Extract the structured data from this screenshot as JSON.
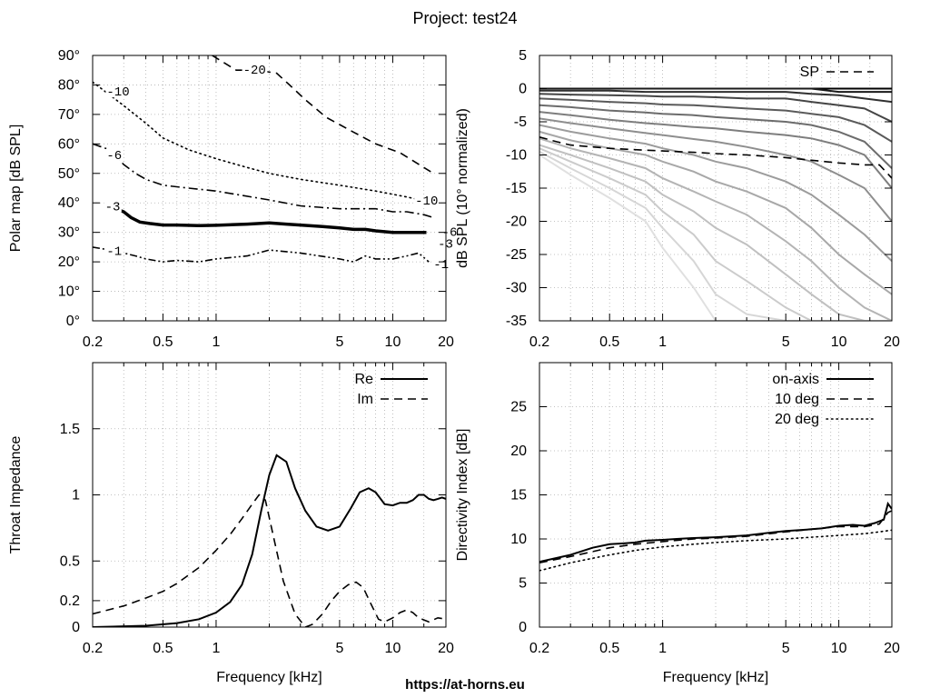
{
  "page": {
    "title": "Project: test24",
    "footer": "https://at-horns.eu"
  },
  "chart_data": [
    {
      "id": "polar",
      "type": "line",
      "title": "",
      "xlabel": "",
      "ylabel": "Polar map [dB SPL]",
      "xscale": "log",
      "xlim": [
        0.2,
        20
      ],
      "ylim": [
        0,
        90
      ],
      "x_ticks": [
        0.2,
        0.5,
        1,
        5,
        10,
        20
      ],
      "x_tick_labels": [
        "0.2",
        "0.5",
        "1",
        "5",
        "10",
        "20"
      ],
      "y_ticks": [
        0,
        10,
        20,
        30,
        40,
        50,
        60,
        70,
        80,
        90
      ],
      "y_tick_labels": [
        "0°",
        "10°",
        "20°",
        "30°",
        "40°",
        "50°",
        "60°",
        "70°",
        "80°",
        "90°"
      ],
      "grid": true,
      "series": [
        {
          "name": "-20",
          "style": "dash",
          "x": [
            0.95,
            1.3,
            1.7,
            2.2,
            2.6,
            3.2,
            4.2,
            6,
            8,
            11,
            15,
            17
          ],
          "y": [
            90,
            85,
            85,
            84,
            80,
            75,
            69,
            64,
            60,
            57,
            52,
            50
          ]
        },
        {
          "name": "-10",
          "style": "dot",
          "x": [
            0.2,
            0.3,
            0.4,
            0.5,
            0.7,
            1,
            1.5,
            2,
            3,
            5,
            8,
            12,
            17
          ],
          "y": [
            81,
            73,
            67,
            62,
            58,
            55,
            52,
            50,
            48,
            46,
            44,
            42,
            40
          ]
        },
        {
          "name": "-6",
          "style": "dashdot",
          "x": [
            0.2,
            0.25,
            0.3,
            0.35,
            0.4,
            0.5,
            0.7,
            1,
            2,
            3,
            5,
            8,
            10,
            12,
            15,
            17
          ],
          "y": [
            60,
            58,
            53,
            50,
            48,
            46,
            45,
            44,
            41,
            39,
            38,
            38,
            37,
            37,
            36,
            35
          ]
        },
        {
          "name": "-3",
          "style": "thick",
          "x": [
            0.27,
            0.3,
            0.33,
            0.37,
            0.42,
            0.5,
            0.6,
            0.8,
            1,
            1.5,
            2,
            2.5,
            3,
            4,
            5,
            6,
            7,
            8,
            10,
            12,
            14,
            15.5
          ],
          "y": [
            38,
            37,
            35,
            33.5,
            33,
            32.5,
            32.5,
            32.3,
            32.4,
            32.8,
            33.2,
            32.8,
            32.5,
            32,
            31.5,
            31,
            31,
            30.5,
            30,
            30,
            30,
            30
          ]
        },
        {
          "name": "-1",
          "style": "dashdotdot",
          "x": [
            0.2,
            0.25,
            0.3,
            0.35,
            0.4,
            0.5,
            0.6,
            0.8,
            1,
            1.5,
            2,
            3,
            5,
            6,
            7,
            8,
            10,
            12,
            14,
            16
          ],
          "y": [
            25,
            24,
            23,
            22,
            21,
            20,
            20.5,
            20,
            21,
            22,
            24,
            23,
            21,
            20,
            22,
            21,
            21,
            22,
            23,
            20
          ]
        }
      ],
      "contour_labels": [
        {
          "text": "-20",
          "x": 1.42,
          "y": 84.5
        },
        {
          "text": "-10",
          "x": 0.24,
          "y": 77
        },
        {
          "text": "-6",
          "x": 0.24,
          "y": 55.5
        },
        {
          "text": "-3",
          "x": 0.235,
          "y": 38
        },
        {
          "text": "-1",
          "x": 0.24,
          "y": 23
        },
        {
          "text": "-10",
          "x": 13.4,
          "y": 40
        },
        {
          "text": "-6",
          "x": 19,
          "y": 29.5
        },
        {
          "text": "-3",
          "x": 18,
          "y": 25.5
        },
        {
          "text": "-1",
          "x": 17,
          "y": 18.5
        }
      ]
    },
    {
      "id": "spl",
      "type": "line",
      "title": "",
      "xlabel": "",
      "ylabel": "dB SPL (10° normalized)",
      "xscale": "log",
      "xlim": [
        0.2,
        20
      ],
      "ylim": [
        -35,
        5
      ],
      "x_ticks": [
        0.2,
        0.5,
        1,
        5,
        10,
        20
      ],
      "x_tick_labels": [
        "0.2",
        "0.5",
        "1",
        "5",
        "10",
        "20"
      ],
      "y_ticks": [
        -35,
        -30,
        -25,
        -20,
        -15,
        -10,
        -5,
        0,
        5
      ],
      "y_tick_labels": [
        "-35",
        "-30",
        "-25",
        "-20",
        "-15",
        "-10",
        "-5",
        "0",
        "5"
      ],
      "grid": true,
      "legend": {
        "position": "top-right",
        "entries": [
          "SP"
        ]
      },
      "series_x": [
        0.2,
        0.3,
        0.5,
        0.8,
        1,
        1.5,
        2,
        3,
        5,
        7,
        10,
        14,
        20
      ],
      "angle_series": [
        {
          "gray": "#000000",
          "y": [
            0,
            0,
            0,
            0,
            0,
            0,
            0,
            0,
            0,
            0,
            0,
            0,
            0
          ]
        },
        {
          "gray": "#1a1a1a",
          "y": [
            0,
            0,
            0,
            0,
            0,
            0,
            0,
            0,
            0,
            0,
            -0.5,
            -0.5,
            -0.5
          ]
        },
        {
          "gray": "#303030",
          "y": [
            -0.3,
            -0.3,
            -0.3,
            -0.5,
            -0.5,
            -0.5,
            -0.5,
            -0.5,
            -0.5,
            -0.8,
            -1,
            -1.5,
            -2
          ]
        },
        {
          "gray": "#454545",
          "y": [
            -0.8,
            -0.9,
            -1,
            -1.1,
            -1.2,
            -1.2,
            -1.3,
            -1.5,
            -1.5,
            -2,
            -2.5,
            -3,
            -5
          ]
        },
        {
          "gray": "#5a5a5a",
          "y": [
            -1.5,
            -1.7,
            -2,
            -2.2,
            -2.4,
            -2.5,
            -2.7,
            -3,
            -3.3,
            -3.8,
            -4.3,
            -5.5,
            -8
          ]
        },
        {
          "gray": "#6c6c6c",
          "y": [
            -2.5,
            -2.8,
            -3.3,
            -3.6,
            -3.8,
            -4,
            -4.3,
            -4.6,
            -5,
            -5.5,
            -6.5,
            -8,
            -12
          ]
        },
        {
          "gray": "#7e7e7e",
          "y": [
            -3.5,
            -4,
            -4.7,
            -5.2,
            -5.4,
            -5.8,
            -6,
            -6.5,
            -7,
            -7.5,
            -8.5,
            -10,
            -15
          ]
        },
        {
          "gray": "#8e8e8e",
          "y": [
            -4.5,
            -5.2,
            -6,
            -6.7,
            -7,
            -7.6,
            -8,
            -8.8,
            -10,
            -11,
            -13,
            -15,
            -20
          ]
        },
        {
          "gray": "#9c9c9c",
          "y": [
            -5.5,
            -6.5,
            -7.5,
            -8.3,
            -9,
            -10,
            -11,
            -12,
            -14,
            -16,
            -19,
            -22,
            -26
          ]
        },
        {
          "gray": "#a8a8a8",
          "y": [
            -6.5,
            -7.8,
            -9,
            -10,
            -11,
            -12.5,
            -14,
            -15.5,
            -18,
            -21,
            -25,
            -28,
            -31
          ]
        },
        {
          "gray": "#b4b4b4",
          "y": [
            -7.5,
            -9,
            -10.5,
            -12,
            -13.5,
            -15.5,
            -17,
            -19,
            -23,
            -26,
            -30,
            -33,
            -35
          ]
        },
        {
          "gray": "#c0c0c0",
          "y": [
            -8.5,
            -10,
            -12,
            -14,
            -16,
            -18.5,
            -21,
            -23.5,
            -28,
            -31,
            -34,
            -35,
            -35
          ]
        },
        {
          "gray": "#cbcbcb",
          "y": [
            -9,
            -11,
            -13.5,
            -16,
            -18.5,
            -22,
            -26,
            -29,
            -33,
            -35,
            -35,
            -35,
            -35
          ]
        },
        {
          "gray": "#d6d6d6",
          "y": [
            -9.5,
            -12,
            -15,
            -18,
            -21,
            -26,
            -31,
            -34,
            -35,
            -35,
            -35,
            -35,
            -35
          ]
        },
        {
          "gray": "#e0e0e0",
          "y": [
            -10,
            -13,
            -16.5,
            -20,
            -24,
            -30,
            -35,
            -35,
            -35,
            -35,
            -35,
            -35,
            -35
          ]
        }
      ],
      "series": [
        {
          "name": "SP",
          "style": "dash",
          "x": [
            0.2,
            0.25,
            0.3,
            0.4,
            0.5,
            0.7,
            1,
            1.5,
            2,
            3,
            5,
            7,
            10,
            14,
            17,
            20
          ],
          "y": [
            -7.3,
            -8,
            -8.5,
            -8.8,
            -9,
            -9.2,
            -9.4,
            -9.6,
            -9.8,
            -10,
            -10.4,
            -10.8,
            -11.2,
            -11.5,
            -11.5,
            -13.5
          ]
        }
      ]
    },
    {
      "id": "impedance",
      "type": "line",
      "title": "",
      "xlabel": "Frequency [kHz]",
      "ylabel": "Throat Impedance",
      "xscale": "log",
      "xlim": [
        0.2,
        20
      ],
      "ylim": [
        0,
        2
      ],
      "x_ticks": [
        0.2,
        0.5,
        1,
        5,
        10,
        20
      ],
      "x_tick_labels": [
        "0.2",
        "0.5",
        "1",
        "5",
        "10",
        "20"
      ],
      "y_ticks": [
        0,
        0.2,
        0.5,
        1,
        1.5
      ],
      "y_tick_labels": [
        "0",
        "0.2",
        "0.5",
        "1",
        "1.5"
      ],
      "grid": true,
      "legend": {
        "position": "top-right",
        "entries": [
          "Re",
          "Im"
        ]
      },
      "series": [
        {
          "name": "Re",
          "style": "solid",
          "x": [
            0.2,
            0.4,
            0.6,
            0.8,
            1,
            1.2,
            1.4,
            1.6,
            1.8,
            2,
            2.2,
            2.5,
            2.8,
            3.2,
            3.7,
            4.3,
            5,
            5.8,
            6.5,
            7.3,
            8,
            9,
            10,
            11,
            12,
            13,
            14,
            15,
            16,
            17,
            18,
            19,
            20
          ],
          "y": [
            0,
            0.01,
            0.03,
            0.06,
            0.11,
            0.19,
            0.32,
            0.55,
            0.88,
            1.15,
            1.3,
            1.25,
            1.05,
            0.88,
            0.76,
            0.73,
            0.76,
            0.9,
            1.02,
            1.05,
            1.02,
            0.93,
            0.92,
            0.94,
            0.94,
            0.96,
            1.0,
            1.0,
            0.97,
            0.96,
            0.97,
            0.98,
            0.97
          ]
        },
        {
          "name": "Im",
          "style": "dash",
          "x": [
            0.2,
            0.3,
            0.4,
            0.5,
            0.6,
            0.8,
            1,
            1.2,
            1.4,
            1.6,
            1.75,
            1.9,
            2.1,
            2.4,
            2.8,
            3.2,
            3.5,
            4,
            4.5,
            5,
            5.6,
            6.2,
            6.8,
            7.5,
            8.3,
            9,
            10,
            11,
            12,
            13,
            14,
            16,
            18,
            20
          ],
          "y": [
            0.1,
            0.16,
            0.22,
            0.27,
            0.33,
            0.45,
            0.58,
            0.7,
            0.82,
            0.93,
            1.0,
            0.96,
            0.7,
            0.35,
            0.1,
            0.0,
            0.02,
            0.1,
            0.2,
            0.27,
            0.32,
            0.34,
            0.3,
            0.18,
            0.06,
            0.04,
            0.07,
            0.11,
            0.13,
            0.11,
            0.07,
            0.04,
            0.07,
            0.06
          ]
        }
      ]
    },
    {
      "id": "directivity",
      "type": "line",
      "title": "",
      "xlabel": "Frequency [kHz]",
      "ylabel": "Directivity Index [dB]",
      "xscale": "log",
      "xlim": [
        0.2,
        20
      ],
      "ylim": [
        0,
        30
      ],
      "x_ticks": [
        0.2,
        0.5,
        1,
        5,
        10,
        20
      ],
      "x_tick_labels": [
        "0.2",
        "0.5",
        "1",
        "5",
        "10",
        "20"
      ],
      "y_ticks": [
        0,
        5,
        10,
        15,
        20,
        25
      ],
      "y_tick_labels": [
        "0",
        "5",
        "10",
        "15",
        "20",
        "25"
      ],
      "grid": true,
      "legend": {
        "position": "top-right",
        "entries": [
          "on-axis",
          "10 deg",
          "20 deg"
        ]
      },
      "series": [
        {
          "name": "on-axis",
          "style": "solid",
          "x": [
            0.2,
            0.3,
            0.4,
            0.5,
            0.6,
            0.7,
            0.8,
            1,
            1.2,
            1.5,
            2,
            3,
            4,
            5,
            6,
            7,
            8,
            10,
            12,
            14,
            16,
            18,
            19,
            20
          ],
          "y": [
            7.4,
            8.2,
            9.0,
            9.4,
            9.5,
            9.6,
            9.8,
            9.9,
            10.0,
            10.1,
            10.2,
            10.4,
            10.7,
            10.9,
            11.0,
            11.1,
            11.2,
            11.5,
            11.6,
            11.5,
            11.8,
            12.2,
            14.0,
            13.4
          ]
        },
        {
          "name": "10 deg",
          "style": "dash",
          "x": [
            0.2,
            0.3,
            0.5,
            0.7,
            1,
            1.5,
            2,
            3,
            5,
            7,
            10,
            14,
            17,
            19,
            20
          ],
          "y": [
            7.3,
            8.0,
            9.0,
            9.4,
            9.7,
            10.0,
            10.1,
            10.3,
            10.8,
            11.1,
            11.4,
            11.4,
            11.7,
            13.0,
            13.2
          ]
        },
        {
          "name": "20 deg",
          "style": "dot",
          "x": [
            0.2,
            0.3,
            0.5,
            0.7,
            1,
            1.5,
            2,
            3,
            5,
            7,
            10,
            14,
            17,
            20
          ],
          "y": [
            6.4,
            7.3,
            8.2,
            8.7,
            9.1,
            9.4,
            9.6,
            9.8,
            10.0,
            10.2,
            10.4,
            10.6,
            10.8,
            11.0
          ]
        }
      ]
    }
  ]
}
